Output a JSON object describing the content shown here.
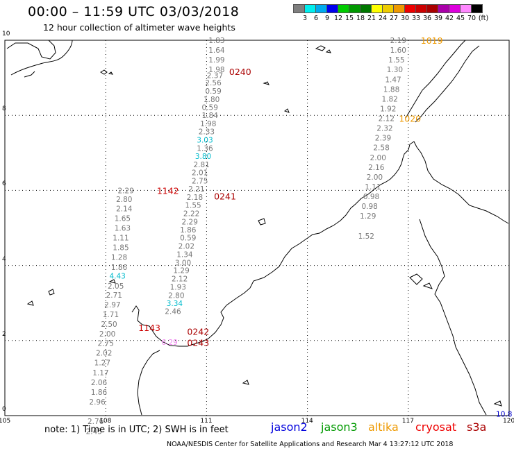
{
  "header": {
    "title": "00:00 – 11:59 UTC 03/03/2018",
    "subtitle": "12 hour collection of altimeter wave heights"
  },
  "legend": {
    "unit": "(ft)",
    "colors": [
      "#7f7f7f",
      "#00eeee",
      "#00aaee",
      "#0000ee",
      "#00cc00",
      "#009900",
      "#007700",
      "#ffff00",
      "#eecc00",
      "#ee9900",
      "#ee0000",
      "#cc0000",
      "#aa0000",
      "#aa00aa",
      "#dd00dd",
      "#ff88ff",
      "#000000"
    ],
    "labels": [
      "3",
      "6",
      "9",
      "12",
      "15",
      "18",
      "21",
      "24",
      "27",
      "30",
      "33",
      "36",
      "39",
      "42",
      "45",
      "70"
    ]
  },
  "axes": {
    "lon_ticks": [
      "105",
      "108",
      "111",
      "114",
      "117",
      "120"
    ],
    "lat_ticks": [
      "0",
      "2",
      "4",
      "6",
      "8",
      "10"
    ]
  },
  "tracks": [
    {
      "name": "track-0240",
      "time_label": "0240",
      "time_color": "#aa0000",
      "label_lon": 112.0,
      "label_lat": 9.17,
      "points": [
        {
          "lon": 111.3,
          "lat": 10.0,
          "v": "1.83",
          "c": "#777777"
        },
        {
          "lon": 111.3,
          "lat": 9.74,
          "v": "1.64",
          "c": "#777777"
        },
        {
          "lon": 111.3,
          "lat": 9.48,
          "v": "1.99",
          "c": "#777777"
        },
        {
          "lon": 111.3,
          "lat": 9.22,
          "v": "1.98",
          "c": "#777777"
        },
        {
          "lon": 111.25,
          "lat": 9.07,
          "v": "2.37",
          "c": "#777777"
        },
        {
          "lon": 111.2,
          "lat": 8.87,
          "v": "2.56",
          "c": "#777777"
        },
        {
          "lon": 111.2,
          "lat": 8.65,
          "v": "0.59",
          "c": "#777777"
        },
        {
          "lon": 111.15,
          "lat": 8.43,
          "v": "1.80",
          "c": "#777777"
        },
        {
          "lon": 111.1,
          "lat": 8.22,
          "v": "0.59",
          "c": "#777777"
        },
        {
          "lon": 111.1,
          "lat": 8.0,
          "v": "1.84",
          "c": "#777777"
        },
        {
          "lon": 111.05,
          "lat": 7.78,
          "v": "1.98",
          "c": "#777777"
        },
        {
          "lon": 111.0,
          "lat": 7.57,
          "v": "2.33",
          "c": "#777777"
        },
        {
          "lon": 110.95,
          "lat": 7.35,
          "v": "3.03",
          "c": "#00bbcc"
        },
        {
          "lon": 110.95,
          "lat": 7.13,
          "v": "1.36",
          "c": "#777777"
        },
        {
          "lon": 110.9,
          "lat": 6.91,
          "v": "3.80",
          "c": "#00bbcc"
        },
        {
          "lon": 110.85,
          "lat": 6.69,
          "v": "2.81",
          "c": "#777777"
        },
        {
          "lon": 110.8,
          "lat": 6.48,
          "v": "2.01",
          "c": "#777777"
        },
        {
          "lon": 110.8,
          "lat": 6.26,
          "v": "2.75",
          "c": "#777777"
        }
      ]
    },
    {
      "name": "track-0241",
      "time_label": "0241",
      "time_color": "#aa0000",
      "label_lon": 111.55,
      "label_lat": 5.85,
      "points": [
        {
          "lon": 110.7,
          "lat": 6.04,
          "v": "2.21",
          "c": "#777777"
        },
        {
          "lon": 110.65,
          "lat": 5.82,
          "v": "2.18",
          "c": "#777777"
        },
        {
          "lon": 110.6,
          "lat": 5.61,
          "v": "1.55",
          "c": "#777777"
        },
        {
          "lon": 110.55,
          "lat": 5.39,
          "v": "2.22",
          "c": "#777777"
        },
        {
          "lon": 110.5,
          "lat": 5.17,
          "v": "2.29",
          "c": "#777777"
        },
        {
          "lon": 110.45,
          "lat": 4.95,
          "v": "1.86",
          "c": "#777777"
        },
        {
          "lon": 110.45,
          "lat": 4.74,
          "v": "0.59",
          "c": "#777777"
        },
        {
          "lon": 110.4,
          "lat": 4.52,
          "v": "2.02",
          "c": "#777777"
        },
        {
          "lon": 110.35,
          "lat": 4.3,
          "v": "1.34",
          "c": "#777777"
        }
      ]
    },
    {
      "name": "track-0242",
      "time_label": "0242",
      "time_color": "#aa0000",
      "label_lon": 110.75,
      "label_lat": 2.25,
      "points": [
        {
          "lon": 110.3,
          "lat": 4.08,
          "v": "3.00",
          "c": "#777777"
        },
        {
          "lon": 110.25,
          "lat": 3.87,
          "v": "1.29",
          "c": "#777777"
        },
        {
          "lon": 110.2,
          "lat": 3.65,
          "v": "2.12",
          "c": "#777777"
        },
        {
          "lon": 110.15,
          "lat": 3.43,
          "v": "1.93",
          "c": "#777777"
        },
        {
          "lon": 110.1,
          "lat": 3.21,
          "v": "2.80",
          "c": "#777777"
        },
        {
          "lon": 110.05,
          "lat": 2.99,
          "v": "3.34",
          "c": "#00bbcc"
        },
        {
          "lon": 110.0,
          "lat": 2.78,
          "v": "2.46",
          "c": "#777777"
        }
      ]
    },
    {
      "name": "track-0243",
      "time_label": "0243",
      "time_color": "#aa0000",
      "label_lon": 110.75,
      "label_lat": 1.95,
      "points": [
        {
          "lon": 109.9,
          "lat": 1.96,
          "v": "6.29",
          "c": "#ee88ee"
        }
      ]
    },
    {
      "name": "track-1142",
      "time_label": "1142",
      "time_color": "#cc0000",
      "label_lon": 109.85,
      "label_lat": 6.0,
      "points": [
        {
          "lon": 108.6,
          "lat": 6.0,
          "v": "2.29",
          "c": "#777777"
        },
        {
          "lon": 108.55,
          "lat": 5.77,
          "v": "2.80",
          "c": "#777777"
        },
        {
          "lon": 108.55,
          "lat": 5.52,
          "v": "2.14",
          "c": "#777777"
        },
        {
          "lon": 108.5,
          "lat": 5.26,
          "v": "1.65",
          "c": "#777777"
        },
        {
          "lon": 108.5,
          "lat": 5.0,
          "v": "1.63",
          "c": "#777777"
        },
        {
          "lon": 108.45,
          "lat": 4.74,
          "v": "1.11",
          "c": "#777777"
        },
        {
          "lon": 108.45,
          "lat": 4.48,
          "v": "1.85",
          "c": "#777777"
        },
        {
          "lon": 108.4,
          "lat": 4.22,
          "v": "1.28",
          "c": "#777777"
        },
        {
          "lon": 108.4,
          "lat": 3.96,
          "v": "1.86",
          "c": "#777777"
        },
        {
          "lon": 108.35,
          "lat": 3.72,
          "v": "4.43",
          "c": "#00bbcc"
        }
      ]
    },
    {
      "name": "track-1143",
      "time_label": "1143",
      "time_color": "#cc0000",
      "label_lon": 109.3,
      "label_lat": 2.35,
      "points": [
        {
          "lon": 108.3,
          "lat": 3.46,
          "v": "2.05",
          "c": "#777777"
        },
        {
          "lon": 108.25,
          "lat": 3.22,
          "v": "2.71",
          "c": "#777777"
        },
        {
          "lon": 108.2,
          "lat": 2.96,
          "v": "2.97",
          "c": "#777777"
        },
        {
          "lon": 108.15,
          "lat": 2.7,
          "v": "1.71",
          "c": "#777777"
        },
        {
          "lon": 108.1,
          "lat": 2.44,
          "v": "2.50",
          "c": "#777777"
        },
        {
          "lon": 108.05,
          "lat": 2.18,
          "v": "2.00",
          "c": "#777777"
        },
        {
          "lon": 108.0,
          "lat": 1.93,
          "v": "2.75",
          "c": "#777777"
        },
        {
          "lon": 107.95,
          "lat": 1.67,
          "v": "2.02",
          "c": "#777777"
        },
        {
          "lon": 107.9,
          "lat": 1.41,
          "v": "1.27",
          "c": "#777777"
        },
        {
          "lon": 107.85,
          "lat": 1.15,
          "v": "1.17",
          "c": "#777777"
        },
        {
          "lon": 107.8,
          "lat": 0.89,
          "v": "2.06",
          "c": "#777777"
        },
        {
          "lon": 107.8,
          "lat": 0.63,
          "v": "1.86",
          "c": "#777777"
        },
        {
          "lon": 107.75,
          "lat": 0.37,
          "v": "2.96",
          "c": "#777777"
        },
        {
          "lon": 107.7,
          "lat": -0.15,
          "v": "2.76",
          "c": "#777777"
        },
        {
          "lon": 107.65,
          "lat": -0.42,
          "v": "2.45",
          "c": "#777777"
        }
      ]
    },
    {
      "name": "track-1019",
      "time_label": "1019",
      "time_color": "#ee9900",
      "label_lon": 117.7,
      "label_lat": 10.0,
      "points": [
        {
          "lon": 116.7,
          "lat": 10.0,
          "v": "2.19",
          "c": "#777777"
        },
        {
          "lon": 116.7,
          "lat": 9.74,
          "v": "1.60",
          "c": "#777777"
        },
        {
          "lon": 116.65,
          "lat": 9.48,
          "v": "1.55",
          "c": "#777777"
        },
        {
          "lon": 116.6,
          "lat": 9.22,
          "v": "1.30",
          "c": "#777777"
        },
        {
          "lon": 116.55,
          "lat": 8.96,
          "v": "1.47",
          "c": "#777777"
        },
        {
          "lon": 116.5,
          "lat": 8.7,
          "v": "1.88",
          "c": "#777777"
        },
        {
          "lon": 116.45,
          "lat": 8.44,
          "v": "1.82",
          "c": "#777777"
        },
        {
          "lon": 116.4,
          "lat": 8.18,
          "v": "1.92",
          "c": "#777777"
        },
        {
          "lon": 116.35,
          "lat": 7.92,
          "v": "2.12",
          "c": "#777777"
        }
      ]
    },
    {
      "name": "track-1020",
      "time_label": "1020",
      "time_color": "#ee9900",
      "label_lon": 117.05,
      "label_lat": 7.92,
      "points": [
        {
          "lon": 116.3,
          "lat": 7.66,
          "v": "2.32",
          "c": "#777777"
        },
        {
          "lon": 116.25,
          "lat": 7.4,
          "v": "2.39",
          "c": "#777777"
        },
        {
          "lon": 116.2,
          "lat": 7.14,
          "v": "2.58",
          "c": "#777777"
        },
        {
          "lon": 116.1,
          "lat": 6.88,
          "v": "2.00",
          "c": "#777777"
        },
        {
          "lon": 116.05,
          "lat": 6.62,
          "v": "2.16",
          "c": "#777777"
        },
        {
          "lon": 116.0,
          "lat": 6.36,
          "v": "2.00",
          "c": "#777777"
        },
        {
          "lon": 115.95,
          "lat": 6.1,
          "v": "1.11",
          "c": "#777777"
        },
        {
          "lon": 115.9,
          "lat": 5.84,
          "v": "0.98",
          "c": "#777777"
        },
        {
          "lon": 115.85,
          "lat": 5.58,
          "v": "0.98",
          "c": "#777777"
        },
        {
          "lon": 115.8,
          "lat": 5.32,
          "v": "1.29",
          "c": "#777777"
        },
        {
          "lon": 115.75,
          "lat": 4.79,
          "v": "1.52",
          "c": "#777777"
        }
      ]
    },
    {
      "name": "track-edge",
      "time_label": "",
      "time_color": "#000000",
      "label_lon": 120,
      "label_lat": 0,
      "points": [
        {
          "lon": 119.85,
          "lat": 0.05,
          "v": "10.8",
          "c": "#0000cc"
        }
      ]
    }
  ],
  "footer": {
    "note": "note:  1) Time is in UTC;  2) SWH is in feet",
    "satellites": [
      {
        "label": "jason2",
        "color": "#0000dd"
      },
      {
        "label": "jason3",
        "color": "#009900"
      },
      {
        "label": "altika",
        "color": "#ee9900"
      },
      {
        "label": "cryosat",
        "color": "#ee0000"
      },
      {
        "label": "s3a",
        "color": "#aa0000"
      }
    ],
    "credit": "NOAA/NESDIS Center for Satellite Applications and Research     Mar  4 13:27:12 UTC 2018"
  }
}
